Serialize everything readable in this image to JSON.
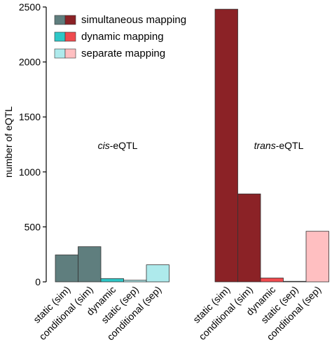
{
  "chart_data": {
    "type": "bar",
    "ylabel": "number of eQTL",
    "ylim": [
      0,
      2500
    ],
    "yticks": [
      "0",
      "500",
      "1000",
      "1500",
      "2000",
      "2500"
    ],
    "legend": {
      "placement": "top-left",
      "entries": [
        {
          "label": "simultaneous mapping",
          "colors": [
            "#5f7e7e",
            "#8b2226"
          ]
        },
        {
          "label": "dynamic mapping",
          "colors": [
            "#2ec7c7",
            "#ef4b4f"
          ]
        },
        {
          "label": "separate mapping",
          "colors": [
            "#aeeaec",
            "#ffbfc1"
          ]
        }
      ]
    },
    "panels": [
      {
        "label_italic": "cis",
        "label_rest": "-eQTL",
        "categories": [
          "static (sim)",
          "conditional (sim)",
          "dynamic",
          "static (sep)",
          "conditional (sep)"
        ],
        "values": [
          245,
          320,
          30,
          15,
          155
        ],
        "colors": [
          "#5f7e7e",
          "#5f7e7e",
          "#2ec7c7",
          "#aeeaec",
          "#aeeaec"
        ]
      },
      {
        "label_italic": "trans",
        "label_rest": "-eQTL",
        "categories": [
          "static (sim)",
          "conditional (sim)",
          "dynamic",
          "static (sep)",
          "conditional (sep)"
        ],
        "values": [
          2480,
          800,
          35,
          5,
          460
        ],
        "colors": [
          "#8b2226",
          "#8b2226",
          "#ef4b4f",
          "#ffbfc1",
          "#ffbfc1"
        ]
      }
    ]
  }
}
